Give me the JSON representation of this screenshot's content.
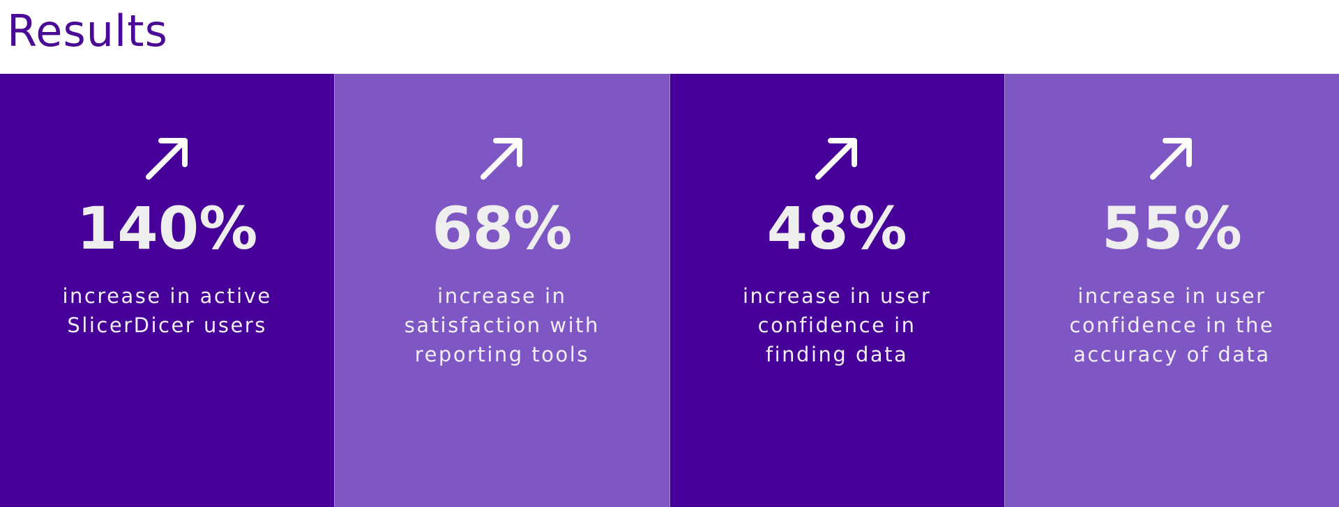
{
  "header": {
    "title": "Results"
  },
  "cards": [
    {
      "value": "140%",
      "lines": [
        "increase in active",
        "SlicerDicer users"
      ]
    },
    {
      "value": "68%",
      "lines": [
        "increase in",
        "satisfaction with",
        "reporting tools"
      ]
    },
    {
      "value": "48%",
      "lines": [
        "increase in user",
        "confidence in",
        "finding data"
      ]
    },
    {
      "value": "55%",
      "lines": [
        "increase in user",
        "confidence in the",
        "accuracy of data"
      ]
    }
  ]
}
